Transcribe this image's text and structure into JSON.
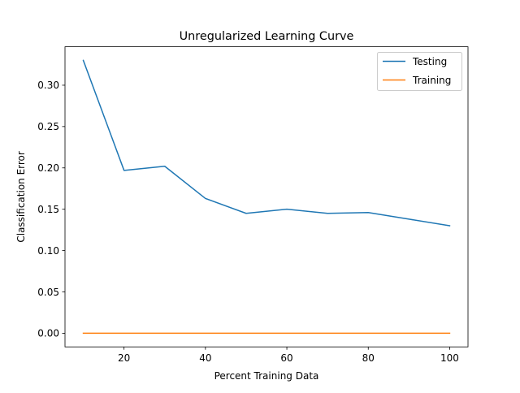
{
  "chart_data": {
    "type": "line",
    "title": "Unregularized Learning Curve",
    "xlabel": "Percent Training Data",
    "ylabel": "Classification Error",
    "x": [
      10,
      20,
      30,
      40,
      50,
      60,
      70,
      80,
      90,
      100
    ],
    "series": [
      {
        "name": "Testing",
        "color": "#1f77b4",
        "values": [
          0.33,
          0.197,
          0.202,
          0.163,
          0.145,
          0.15,
          0.145,
          0.146,
          0.138,
          0.13
        ]
      },
      {
        "name": "Training",
        "color": "#ff7f0e",
        "values": [
          0,
          0,
          0,
          0,
          0,
          0,
          0,
          0,
          0,
          0
        ]
      }
    ],
    "xlim": [
      5.5,
      104.5
    ],
    "ylim": [
      -0.0165,
      0.3465
    ],
    "xticks": [
      20,
      40,
      60,
      80,
      100
    ],
    "xtick_labels": [
      "20",
      "40",
      "60",
      "80",
      "100"
    ],
    "yticks": [
      0.0,
      0.05,
      0.1,
      0.15,
      0.2,
      0.25,
      0.3
    ],
    "ytick_labels": [
      "0.00",
      "0.05",
      "0.10",
      "0.15",
      "0.20",
      "0.25",
      "0.30"
    ],
    "grid": false,
    "legend_position": "top-right"
  }
}
